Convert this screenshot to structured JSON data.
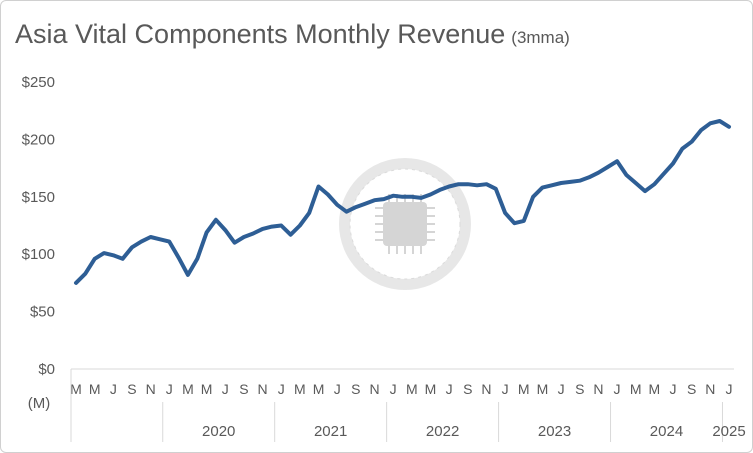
{
  "chart_data": {
    "type": "line",
    "title": "Asia Vital Components Monthly Revenue",
    "subtitle": "(3mma)",
    "ylabel": "(M)",
    "xlabel": "",
    "ylim": [
      0,
      250
    ],
    "y_ticks": [
      "$0",
      "$50",
      "$100",
      "$150",
      "$200",
      "$250"
    ],
    "y_tick_values": [
      0,
      50,
      100,
      150,
      200,
      250
    ],
    "grid": false,
    "legend": "none",
    "series_color": "#2E5E95",
    "month_ticks": [
      "M",
      "M",
      "J",
      "S",
      "N",
      "J",
      "M",
      "M",
      "J",
      "S",
      "N",
      "J",
      "M",
      "M",
      "J",
      "S",
      "N",
      "J",
      "M",
      "M",
      "J",
      "S",
      "N",
      "J",
      "M",
      "M",
      "J",
      "S",
      "N",
      "J",
      "M",
      "M",
      "J",
      "S",
      "N",
      "J"
    ],
    "year_labels": [
      "2020",
      "2021",
      "2022",
      "2023",
      "2024",
      "2025"
    ],
    "x": [
      "2019-03",
      "2019-04",
      "2019-05",
      "2019-06",
      "2019-07",
      "2019-08",
      "2019-09",
      "2019-10",
      "2019-11",
      "2019-12",
      "2020-01",
      "2020-02",
      "2020-03",
      "2020-04",
      "2020-05",
      "2020-06",
      "2020-07",
      "2020-08",
      "2020-09",
      "2020-10",
      "2020-11",
      "2020-12",
      "2021-01",
      "2021-02",
      "2021-03",
      "2021-04",
      "2021-05",
      "2021-06",
      "2021-07",
      "2021-08",
      "2021-09",
      "2021-10",
      "2021-11",
      "2021-12",
      "2022-01",
      "2022-02",
      "2022-03",
      "2022-04",
      "2022-05",
      "2022-06",
      "2022-07",
      "2022-08",
      "2022-09",
      "2022-10",
      "2022-11",
      "2022-12",
      "2023-01",
      "2023-02",
      "2023-03",
      "2023-04",
      "2023-05",
      "2023-06",
      "2023-07",
      "2023-08",
      "2023-09",
      "2023-10",
      "2023-11",
      "2023-12",
      "2024-01",
      "2024-02",
      "2024-03",
      "2024-04",
      "2024-05",
      "2024-06",
      "2024-07",
      "2024-08",
      "2024-09",
      "2024-10",
      "2024-11",
      "2024-12",
      "2025-01"
    ],
    "series": [
      {
        "values": [
          75,
          83,
          96,
          101,
          99,
          96,
          106,
          111,
          115,
          113,
          111,
          97,
          82,
          96,
          119,
          130,
          121,
          110,
          115,
          118,
          122,
          124,
          125,
          117,
          125,
          136,
          159,
          152,
          143,
          137,
          141,
          144,
          147,
          148,
          151,
          150,
          150,
          149,
          152,
          156,
          159,
          161,
          161,
          160,
          161,
          157,
          136,
          127,
          129,
          150,
          158,
          160,
          162,
          163,
          164,
          167,
          171,
          176,
          181,
          169,
          162,
          155,
          161,
          170,
          179,
          192,
          198,
          208,
          214,
          216,
          211
        ]
      }
    ]
  }
}
